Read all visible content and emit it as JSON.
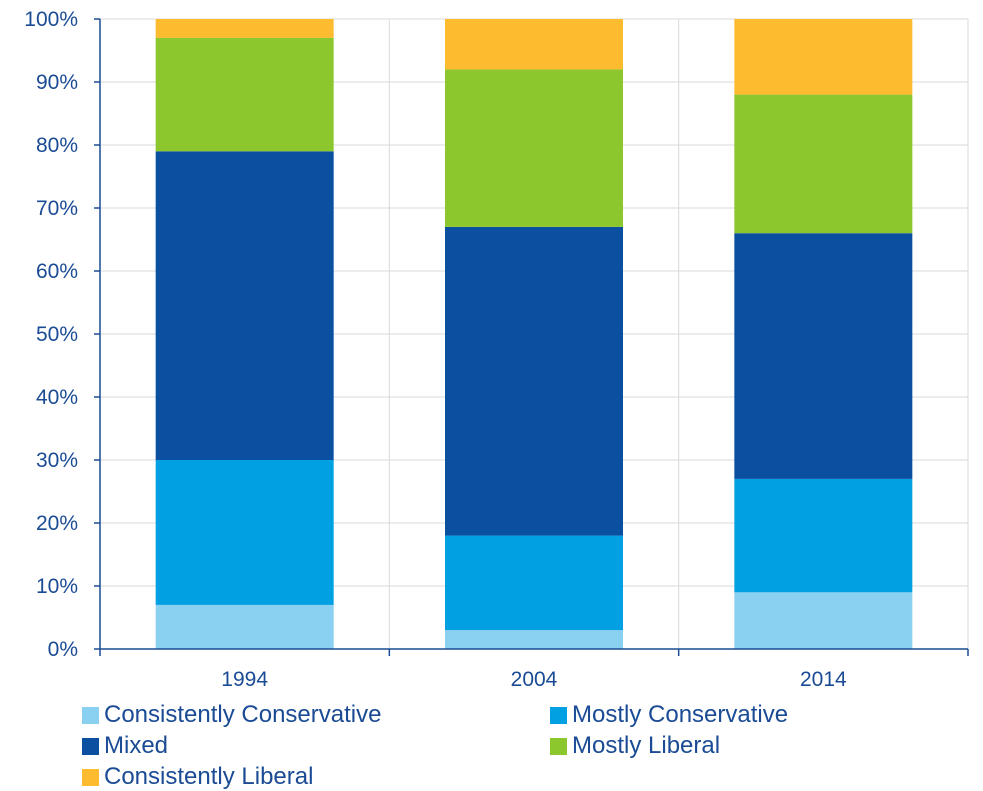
{
  "chart_data": {
    "type": "bar",
    "stacked": true,
    "percent": true,
    "categories": [
      "1994",
      "2004",
      "2014"
    ],
    "ylim": [
      0,
      100
    ],
    "yticks": [
      "0%",
      "10%",
      "20%",
      "30%",
      "40%",
      "50%",
      "60%",
      "70%",
      "80%",
      "90%",
      "100%"
    ],
    "grid": true,
    "legend_position": "bottom",
    "series": [
      {
        "name": "Consistently Conservative",
        "color": "#8ad0f0",
        "values": [
          7,
          3,
          9
        ]
      },
      {
        "name": "Mostly Conservative",
        "color": "#00a0e3",
        "values": [
          23,
          15,
          18
        ]
      },
      {
        "name": "Mixed",
        "color": "#0b4fa1",
        "values": [
          49,
          49,
          39
        ]
      },
      {
        "name": "Mostly Liberal",
        "color": "#8cc72e",
        "values": [
          18,
          25,
          22
        ]
      },
      {
        "name": "Consistently Liberal",
        "color": "#fdbb30",
        "values": [
          3,
          8,
          12
        ]
      }
    ]
  }
}
